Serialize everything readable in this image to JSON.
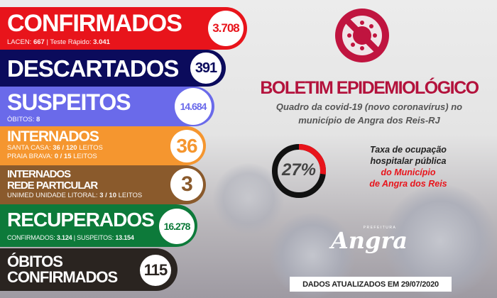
{
  "colors": {
    "confirmados": "#e8141b",
    "descartados": "#0b0b5c",
    "suspeitos": "#6a6aea",
    "internados": "#f5962f",
    "particular": "#8a5a2c",
    "recuperados": "#0d7a3a",
    "obitos": "#2a2420",
    "title": "#b3123c"
  },
  "confirmados": {
    "label": "CONFIRMADOS",
    "value": "3.708",
    "sub_a_label": "LACEN: ",
    "sub_a_value": "667",
    "sub_b_label": " | Teste Rápido: ",
    "sub_b_value": "3.041"
  },
  "descartados": {
    "label": "DESCARTADOS",
    "value": "391"
  },
  "suspeitos": {
    "label": "SUSPEITOS",
    "value": "14.684",
    "sub_label": "ÓBITOS: ",
    "sub_value": "8"
  },
  "internados": {
    "label": "INTERNADOS",
    "value": "36",
    "line1_label": "SANTA CASA: ",
    "line1_value": "36 / 120",
    "line1_suffix": " LEITOS",
    "line2_label": "PRAIA BRAVA: ",
    "line2_value": "0 / 15",
    "line2_suffix": " LEITOS"
  },
  "particular": {
    "label1": "INTERNADOS",
    "label2": "REDE PARTICULAR",
    "value": "3",
    "sub_label": "UNIMED UNIDADE LITORAL: ",
    "sub_value": "3 / 10",
    "sub_suffix": " LEITOS"
  },
  "recuperados": {
    "label": "RECUPERADOS",
    "value": "16.278",
    "sub_a_label": "CONFIRMADOS: ",
    "sub_a_value": "3.124",
    "sub_b_label": " | SUSPEITOS: ",
    "sub_b_value": "13.154"
  },
  "obitos": {
    "label1": "ÓBITOS",
    "label2": "CONFIRMADOS",
    "value": "115"
  },
  "header": {
    "icon": "no-virus-icon",
    "title": "BOLETIM EPIDEMIOLÓGICO",
    "subtitle1": "Quadro da covid-19 (novo coronavírus) no",
    "subtitle2": "município de Angra dos Reis-RJ"
  },
  "occupancy": {
    "percent": 27,
    "percent_label": "27%",
    "line1": "Taxa de ocupação",
    "line2": "hospitalar pública",
    "line3": "do Município",
    "line4": "de Angra dos Reis"
  },
  "logo": {
    "small": "PREFEITURA",
    "main": "Angra"
  },
  "footer": {
    "date_label": "DADOS ATUALIZADOS EM 29/07/2020"
  }
}
